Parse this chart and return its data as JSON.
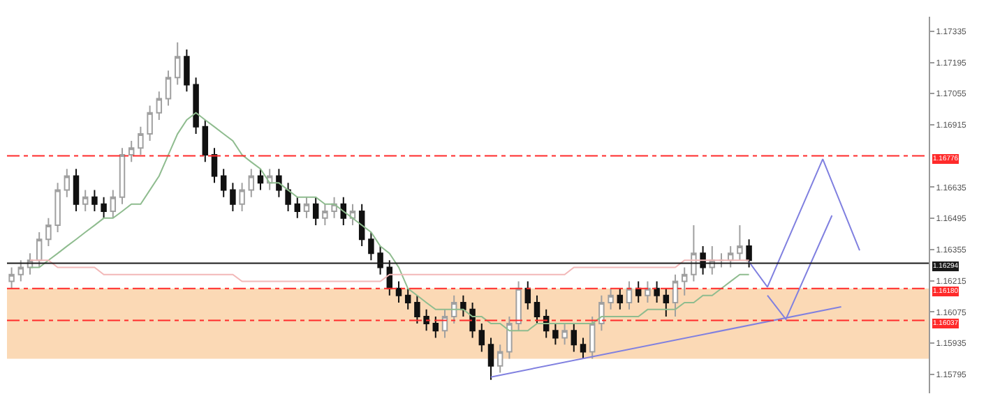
{
  "chart_data": {
    "type": "candlestick",
    "categories": [
      null,
      null,
      null,
      null,
      null,
      null,
      null,
      null,
      null,
      null,
      null,
      null,
      null,
      null,
      null,
      null,
      null,
      null,
      null,
      null,
      null,
      null,
      null,
      null,
      null,
      null,
      null,
      null,
      null,
      null,
      null,
      null,
      null,
      null,
      null,
      null,
      null,
      null,
      null,
      null,
      null,
      null,
      null,
      null,
      null,
      null,
      null,
      null,
      null,
      null,
      null,
      null,
      null,
      null,
      null,
      null,
      null,
      null,
      null,
      null,
      null,
      null,
      null,
      null,
      null,
      null,
      null,
      null,
      null,
      null,
      null,
      null,
      null,
      null,
      null,
      null,
      null,
      null,
      null,
      null,
      null,
      null,
      null,
      null,
      null,
      null,
      null,
      null,
      null,
      null,
      null,
      null,
      null,
      null,
      null,
      null,
      null,
      null,
      null,
      null
    ],
    "ohlc": [
      [
        1.16212,
        1.16275,
        1.1618,
        1.16243
      ],
      [
        1.16243,
        1.16307,
        1.16212,
        1.16275
      ],
      [
        1.16275,
        1.16338,
        1.16243,
        1.16307
      ],
      [
        1.16307,
        1.16433,
        1.16275,
        1.16401
      ],
      [
        1.16401,
        1.16496,
        1.1637,
        1.16464
      ],
      [
        1.16464,
        1.16654,
        1.16433,
        1.16622
      ],
      [
        1.16622,
        1.16717,
        1.1659,
        1.16685
      ],
      [
        1.16685,
        1.16717,
        1.16527,
        1.16559
      ],
      [
        1.16559,
        1.16622,
        1.16527,
        1.1659
      ],
      [
        1.1659,
        1.16622,
        1.16527,
        1.16559
      ],
      [
        1.16559,
        1.1659,
        1.16496,
        1.16527
      ],
      [
        1.16527,
        1.16622,
        1.16496,
        1.1659
      ],
      [
        1.1659,
        1.16811,
        1.16559,
        1.1678
      ],
      [
        1.1678,
        1.16843,
        1.16748,
        1.16811
      ],
      [
        1.16811,
        1.16906,
        1.1678,
        1.16874
      ],
      [
        1.16874,
        1.17001,
        1.16843,
        1.16969
      ],
      [
        1.16969,
        1.17064,
        1.16937,
        1.17032
      ],
      [
        1.17032,
        1.17158,
        1.17001,
        1.17127
      ],
      [
        1.17127,
        1.17285,
        1.17095,
        1.17221
      ],
      [
        1.17221,
        1.17253,
        1.17064,
        1.17095
      ],
      [
        1.17095,
        1.17127,
        1.16874,
        1.16906
      ],
      [
        1.16906,
        1.16937,
        1.16748,
        1.1678
      ],
      [
        1.1678,
        1.16811,
        1.16654,
        1.16685
      ],
      [
        1.16685,
        1.16717,
        1.1659,
        1.16622
      ],
      [
        1.16622,
        1.16654,
        1.16527,
        1.16559
      ],
      [
        1.16559,
        1.16654,
        1.16527,
        1.16622
      ],
      [
        1.16622,
        1.16717,
        1.1659,
        1.16685
      ],
      [
        1.16685,
        1.16717,
        1.16622,
        1.16654
      ],
      [
        1.16654,
        1.16717,
        1.16622,
        1.16685
      ],
      [
        1.16685,
        1.16717,
        1.1659,
        1.16622
      ],
      [
        1.16622,
        1.16654,
        1.16527,
        1.16559
      ],
      [
        1.16559,
        1.1659,
        1.16496,
        1.16527
      ],
      [
        1.16527,
        1.1659,
        1.16496,
        1.16559
      ],
      [
        1.16559,
        1.1659,
        1.16464,
        1.16496
      ],
      [
        1.16496,
        1.16559,
        1.16464,
        1.16527
      ],
      [
        1.16527,
        1.1659,
        1.16496,
        1.16559
      ],
      [
        1.16559,
        1.1659,
        1.16464,
        1.16496
      ],
      [
        1.16496,
        1.16559,
        1.16464,
        1.16527
      ],
      [
        1.16527,
        1.16559,
        1.1637,
        1.16401
      ],
      [
        1.16401,
        1.16433,
        1.16307,
        1.16338
      ],
      [
        1.16338,
        1.1637,
        1.16243,
        1.16275
      ],
      [
        1.16275,
        1.16307,
        1.16149,
        1.1618
      ],
      [
        1.1618,
        1.16212,
        1.16117,
        1.16149
      ],
      [
        1.16149,
        1.1618,
        1.16086,
        1.16117
      ],
      [
        1.16117,
        1.16149,
        1.16023,
        1.16054
      ],
      [
        1.16054,
        1.16086,
        1.15991,
        1.16023
      ],
      [
        1.16023,
        1.16054,
        1.15959,
        1.15991
      ],
      [
        1.15991,
        1.16086,
        1.15959,
        1.16054
      ],
      [
        1.16054,
        1.16149,
        1.16023,
        1.16117
      ],
      [
        1.16117,
        1.16149,
        1.16054,
        1.16086
      ],
      [
        1.16086,
        1.16117,
        1.15959,
        1.15991
      ],
      [
        1.15991,
        1.16023,
        1.15896,
        1.15928
      ],
      [
        1.15928,
        1.15959,
        1.1577,
        1.15833
      ],
      [
        1.15833,
        1.15928,
        1.15802,
        1.15896
      ],
      [
        1.15896,
        1.16054,
        1.15865,
        1.16023
      ],
      [
        1.16023,
        1.16212,
        1.15991,
        1.1618
      ],
      [
        1.1618,
        1.16212,
        1.16086,
        1.16117
      ],
      [
        1.16117,
        1.16149,
        1.16023,
        1.16054
      ],
      [
        1.16054,
        1.16086,
        1.15959,
        1.15991
      ],
      [
        1.15991,
        1.16023,
        1.15928,
        1.15959
      ],
      [
        1.15959,
        1.16023,
        1.15928,
        1.15991
      ],
      [
        1.15991,
        1.16023,
        1.15896,
        1.15928
      ],
      [
        1.15928,
        1.15959,
        1.15865,
        1.15896
      ],
      [
        1.15896,
        1.16054,
        1.15865,
        1.16023
      ],
      [
        1.16023,
        1.16149,
        1.15991,
        1.16117
      ],
      [
        1.16117,
        1.1618,
        1.16086,
        1.16149
      ],
      [
        1.16149,
        1.1618,
        1.16086,
        1.16117
      ],
      [
        1.16117,
        1.16212,
        1.16086,
        1.1618
      ],
      [
        1.1618,
        1.16212,
        1.16117,
        1.16149
      ],
      [
        1.16149,
        1.16212,
        1.16117,
        1.1618
      ],
      [
        1.1618,
        1.16212,
        1.16117,
        1.16149
      ],
      [
        1.16149,
        1.1618,
        1.16054,
        1.16117
      ],
      [
        1.16117,
        1.16243,
        1.16054,
        1.16212
      ],
      [
        1.16212,
        1.16275,
        1.16149,
        1.16243
      ],
      [
        1.16243,
        1.16464,
        1.16212,
        1.16338
      ],
      [
        1.16338,
        1.1637,
        1.16243,
        1.16275
      ],
      [
        1.16275,
        1.1637,
        1.16243,
        1.16307
      ],
      [
        1.16307,
        1.16338,
        1.16275,
        1.16307
      ],
      [
        1.16307,
        1.1637,
        1.16275,
        1.16338
      ],
      [
        1.16338,
        1.16464,
        1.16307,
        1.1637
      ],
      [
        1.1637,
        1.16401,
        1.16275,
        1.16307
      ],
      null,
      null,
      null,
      null,
      null,
      null,
      null,
      null,
      null,
      null,
      null,
      null,
      null,
      null,
      null,
      null,
      null,
      null,
      null
    ],
    "series": [
      {
        "type": "line",
        "color": "#8fbc8f",
        "values": [
          null,
          null,
          1.16275,
          1.16275,
          1.16307,
          1.16338,
          1.1637,
          1.16401,
          1.16433,
          1.16464,
          1.16496,
          1.16496,
          1.16527,
          1.16559,
          1.16559,
          1.16622,
          1.16685,
          1.1678,
          1.16874,
          1.16937,
          1.16969,
          1.16937,
          1.16906,
          1.16874,
          1.16843,
          1.1678,
          1.16748,
          1.16717,
          1.16654,
          1.16654,
          1.16622,
          1.1659,
          1.1659,
          1.1659,
          1.16559,
          1.16559,
          1.16527,
          1.16496,
          1.16464,
          1.16433,
          1.1637,
          1.16338,
          1.16275,
          1.1618,
          1.16149,
          1.16117,
          1.16086,
          1.16086,
          1.16086,
          1.16086,
          1.16054,
          1.16054,
          1.16023,
          1.16023,
          1.15991,
          1.15991,
          1.15991,
          1.16023,
          1.16023,
          1.16023,
          1.16023,
          1.16023,
          1.16023,
          1.16023,
          1.16054,
          1.16054,
          1.16054,
          1.16054,
          1.16054,
          1.16086,
          1.16086,
          1.16086,
          1.16086,
          1.16117,
          1.16117,
          1.16149,
          1.16149,
          1.1618,
          1.16212,
          1.16243,
          1.16243,
          null,
          null,
          null,
          null,
          null,
          null,
          null,
          null,
          null,
          null,
          null,
          null,
          null,
          null,
          null,
          null,
          null,
          null,
          null
        ]
      },
      {
        "type": "line",
        "color": "#f2b8b8",
        "values": [
          null,
          null,
          1.16307,
          1.16307,
          1.16307,
          1.16275,
          1.16275,
          1.16275,
          1.16275,
          1.16275,
          1.16243,
          1.16243,
          1.16243,
          1.16243,
          1.16243,
          1.16243,
          1.16243,
          1.16243,
          1.16243,
          1.16243,
          1.16243,
          1.16243,
          1.16243,
          1.16243,
          1.16243,
          1.16212,
          1.16212,
          1.16212,
          1.16212,
          1.16212,
          1.16212,
          1.16212,
          1.16212,
          1.16212,
          1.16212,
          1.16212,
          1.16212,
          1.16212,
          1.16212,
          1.16212,
          1.16212,
          1.16243,
          1.16243,
          1.16243,
          1.16243,
          1.16243,
          1.16243,
          1.16243,
          1.16243,
          1.16243,
          1.16243,
          1.16243,
          1.16243,
          1.16243,
          1.16243,
          1.16243,
          1.16243,
          1.16243,
          1.16243,
          1.16243,
          1.16243,
          1.16275,
          1.16275,
          1.16275,
          1.16275,
          1.16275,
          1.16275,
          1.16275,
          1.16275,
          1.16275,
          1.16275,
          1.16275,
          1.16275,
          1.16307,
          1.16307,
          1.16307,
          1.16307,
          1.16307,
          1.16307,
          1.16307,
          1.16307,
          null,
          null,
          null,
          null,
          null,
          null,
          null,
          null,
          null,
          null,
          null,
          null,
          null,
          null,
          null,
          null,
          null,
          null,
          null
        ]
      },
      {
        "type": "line",
        "color": "#8080e0",
        "values": [
          null,
          null,
          null,
          null,
          null,
          null,
          null,
          null,
          null,
          null,
          null,
          null,
          null,
          null,
          null,
          null,
          null,
          null,
          null,
          null,
          null,
          null,
          null,
          null,
          null,
          null,
          null,
          null,
          null,
          null,
          null,
          null,
          null,
          null,
          null,
          null,
          null,
          null,
          null,
          null,
          null,
          null,
          null,
          null,
          null,
          null,
          null,
          null,
          null,
          null,
          null,
          null,
          1.15783,
          null,
          null,
          null,
          null,
          null,
          null,
          null,
          null,
          null,
          null,
          null,
          null,
          null,
          null,
          null,
          null,
          null,
          null,
          null,
          null,
          null,
          null,
          null,
          null,
          null,
          null,
          null,
          null,
          null,
          null,
          null,
          null,
          null,
          null,
          null,
          null,
          null,
          1.16098,
          null,
          null,
          null,
          null,
          null,
          null,
          null,
          null,
          null
        ]
      },
      {
        "type": "line",
        "color": "#8080e0",
        "values": [
          null,
          null,
          null,
          null,
          null,
          null,
          null,
          null,
          null,
          null,
          null,
          null,
          null,
          null,
          null,
          null,
          null,
          null,
          null,
          null,
          null,
          null,
          null,
          null,
          null,
          null,
          null,
          null,
          null,
          null,
          null,
          null,
          null,
          null,
          null,
          null,
          null,
          null,
          null,
          null,
          null,
          null,
          null,
          null,
          null,
          null,
          null,
          null,
          null,
          null,
          null,
          null,
          null,
          null,
          null,
          null,
          null,
          null,
          null,
          null,
          null,
          null,
          null,
          null,
          null,
          null,
          null,
          null,
          null,
          null,
          null,
          null,
          null,
          null,
          null,
          null,
          null,
          null,
          null,
          null,
          1.163,
          null,
          1.16187,
          null,
          null,
          null,
          null,
          null,
          1.16761,
          null,
          null,
          null,
          1.16351,
          null,
          null,
          null,
          null,
          null,
          null,
          null
        ]
      },
      {
        "type": "line",
        "color": "#8080e0",
        "values": [
          null,
          null,
          null,
          null,
          null,
          null,
          null,
          null,
          null,
          null,
          null,
          null,
          null,
          null,
          null,
          null,
          null,
          null,
          null,
          null,
          null,
          null,
          null,
          null,
          null,
          null,
          null,
          null,
          null,
          null,
          null,
          null,
          null,
          null,
          null,
          null,
          null,
          null,
          null,
          null,
          null,
          null,
          null,
          null,
          null,
          null,
          null,
          null,
          null,
          null,
          null,
          null,
          null,
          null,
          null,
          null,
          null,
          null,
          null,
          null,
          null,
          null,
          null,
          null,
          null,
          null,
          null,
          null,
          null,
          null,
          null,
          null,
          null,
          null,
          null,
          null,
          null,
          null,
          null,
          null,
          null,
          null,
          1.16149,
          null,
          1.16042,
          null,
          null,
          null,
          null,
          1.16508,
          null,
          null,
          null,
          null,
          null,
          null,
          null,
          null,
          null,
          null
        ]
      }
    ],
    "ylim": [
      1.1571,
      1.174
    ],
    "yticks": [
      1.17335,
      1.17195,
      1.17055,
      1.16915,
      1.16635,
      1.16495,
      1.16355,
      1.16215,
      1.16075,
      1.15935,
      1.15795
    ],
    "tick_labels": "y",
    "ref_lines": [
      {
        "axis": "y",
        "value": 1.16776,
        "label": "1.16776",
        "color": "#ff2a2a",
        "line_style": "dashed"
      },
      {
        "axis": "y",
        "value": 1.16294,
        "label": "1.16294",
        "color": "#1a1a1a",
        "line_style": "solid"
      },
      {
        "axis": "y",
        "value": 1.1618,
        "label": "1.16180",
        "color": "#ff2a2a",
        "line_style": "dashed"
      },
      {
        "axis": "y",
        "value": 1.16037,
        "label": "1.16037",
        "color": "#ff2a2a",
        "line_style": "dashed"
      }
    ],
    "bands": [
      {
        "axis": "y",
        "from": 1.15865,
        "to": 1.1618,
        "color": "#fbd9b5"
      }
    ]
  }
}
